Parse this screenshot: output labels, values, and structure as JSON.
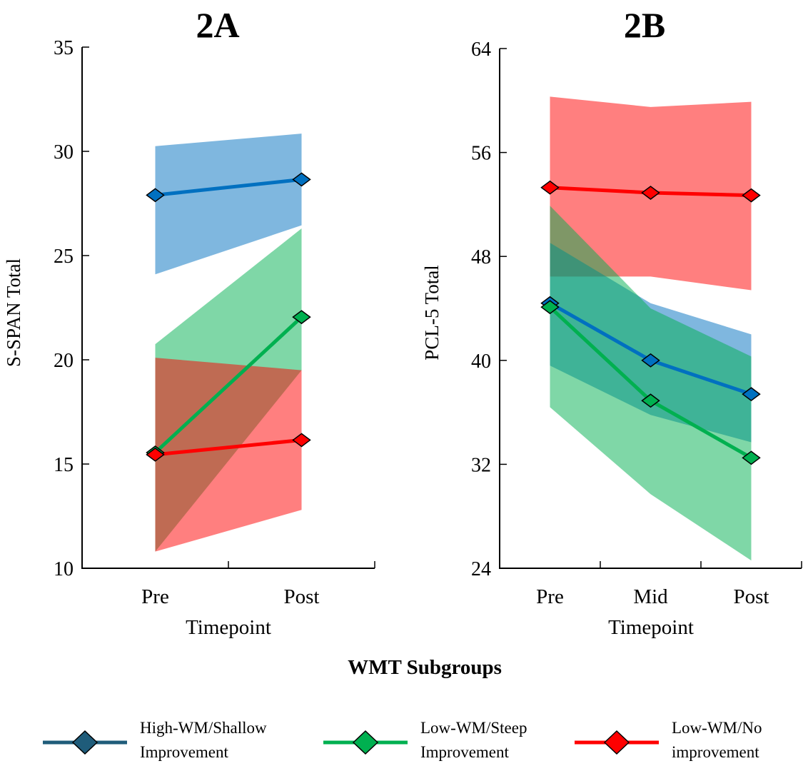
{
  "legend_title": "WMT Subgroups",
  "groups": [
    {
      "key": "high",
      "label_line1": "High-WM/Shallow",
      "label_line2": "Improvement",
      "line_color": "#0070C0",
      "legend_color": "#1F5C7A",
      "band_color": "#0070C0"
    },
    {
      "key": "steep",
      "label_line1": "Low-WM/Steep",
      "label_line2": "Improvement",
      "line_color": "#00B050",
      "legend_color": "#00B050",
      "band_color": "#00B050"
    },
    {
      "key": "none",
      "label_line1": "Low-WM/No",
      "label_line2": "improvement",
      "line_color": "#FF0000",
      "legend_color": "#FF0000",
      "band_color": "#FF0000"
    }
  ],
  "chart_data": [
    {
      "type": "line",
      "title": "2A",
      "xlabel": "Timepoint",
      "ylabel": "S-SPAN Total",
      "categories": [
        "Pre",
        "Post"
      ],
      "ylim": [
        10,
        35
      ],
      "yticks": [
        10,
        15,
        20,
        25,
        30,
        35
      ],
      "grid": false,
      "band_order": [
        "high",
        "steep",
        "none"
      ],
      "series": [
        {
          "key": "high",
          "values": [
            27.9,
            28.65
          ],
          "band_low": [
            24.1,
            26.45
          ],
          "band_high": [
            30.25,
            30.85
          ]
        },
        {
          "key": "steep",
          "values": [
            15.55,
            22.05
          ],
          "band_low": [
            10.8,
            19.5
          ],
          "band_high": [
            20.75,
            26.3
          ]
        },
        {
          "key": "none",
          "values": [
            15.45,
            16.15
          ],
          "band_low": [
            10.8,
            12.8
          ],
          "band_high": [
            20.1,
            19.5
          ]
        }
      ]
    },
    {
      "type": "line",
      "title": "2B",
      "xlabel": "Timepoint",
      "ylabel": "PCL-5 Total",
      "categories": [
        "Pre",
        "Mid",
        "Post"
      ],
      "ylim": [
        24,
        64
      ],
      "yticks": [
        24,
        32,
        40,
        48,
        56,
        64
      ],
      "grid": false,
      "band_order": [
        "none",
        "high",
        "steep"
      ],
      "series": [
        {
          "key": "high",
          "values": [
            44.4,
            40.0,
            37.4
          ],
          "band_low": [
            39.6,
            35.8,
            33.7
          ],
          "band_high": [
            49.05,
            44.4,
            42.0
          ]
        },
        {
          "key": "steep",
          "values": [
            44.1,
            36.9,
            32.5
          ],
          "band_low": [
            36.4,
            29.7,
            24.6
          ],
          "band_high": [
            51.9,
            44.0,
            40.3
          ]
        },
        {
          "key": "none",
          "values": [
            53.3,
            52.9,
            52.7
          ],
          "band_low": [
            46.45,
            46.45,
            45.4
          ],
          "band_high": [
            60.3,
            59.5,
            59.9
          ]
        }
      ]
    }
  ]
}
